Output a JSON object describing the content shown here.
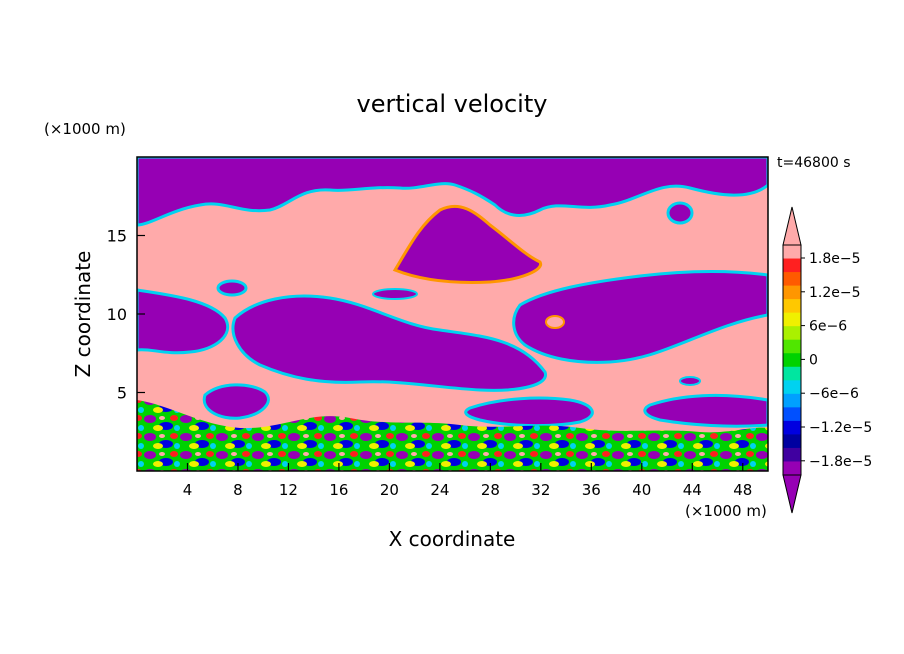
{
  "chart_data": {
    "type": "heatmap",
    "title": "vertical velocity",
    "time_label": "t=46800 s",
    "xlabel": "X coordinate",
    "ylabel": "Z coordinate",
    "x_unit": "(×1000 m)",
    "y_unit": "(×1000 m)",
    "xlim": [
      0,
      50
    ],
    "ylim": [
      0,
      20
    ],
    "x_ticks": [
      "4",
      "8",
      "12",
      "16",
      "20",
      "24",
      "28",
      "32",
      "36",
      "40",
      "44",
      "48"
    ],
    "y_ticks": [
      "5",
      "10",
      "15"
    ],
    "colorbar": {
      "labels": [
        "1.8e−5",
        "1.2e−5",
        "6e−6",
        "0",
        "−6e−6",
        "−1.2e−5",
        "−1.8e−5"
      ],
      "colors": [
        "#ffaaaa",
        "#ff2020",
        "#ff5a00",
        "#ff9600",
        "#ffc800",
        "#f0f000",
        "#aaf000",
        "#50e600",
        "#00d200",
        "#00e6a0",
        "#00d2f0",
        "#00a0ff",
        "#0050ff",
        "#0000e0",
        "#0000a0",
        "#4000a0",
        "#9600b4"
      ]
    },
    "field": {
      "positive_color": "#ffaaaa",
      "negative_color": "#9600b4"
    }
  }
}
